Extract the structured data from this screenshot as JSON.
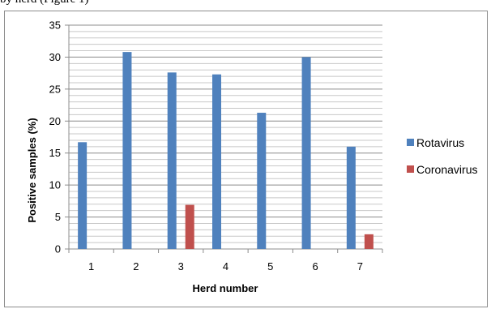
{
  "top_text": "by herd (Figure 1)",
  "chart_data": {
    "type": "bar",
    "title": "",
    "xlabel": "Herd number",
    "ylabel": "Positive samples (%)",
    "categories": [
      "1",
      "2",
      "3",
      "4",
      "5",
      "6",
      "7"
    ],
    "ylim": [
      0,
      35
    ],
    "yticks": [
      0,
      5,
      10,
      15,
      20,
      25,
      30,
      35
    ],
    "ytick_labels": [
      "0",
      "5",
      "10",
      "15",
      "20",
      "25",
      "30",
      "35"
    ],
    "grid": true,
    "legend_position": "right",
    "series": [
      {
        "name": "Rotavirus",
        "color": "#4f81bd",
        "values": [
          16.7,
          30.8,
          27.6,
          27.3,
          21.3,
          30.0,
          16.0
        ]
      },
      {
        "name": "Coronavirus",
        "color": "#c0504d",
        "values": [
          0,
          0,
          6.9,
          0,
          0,
          0,
          2.3
        ]
      }
    ]
  }
}
